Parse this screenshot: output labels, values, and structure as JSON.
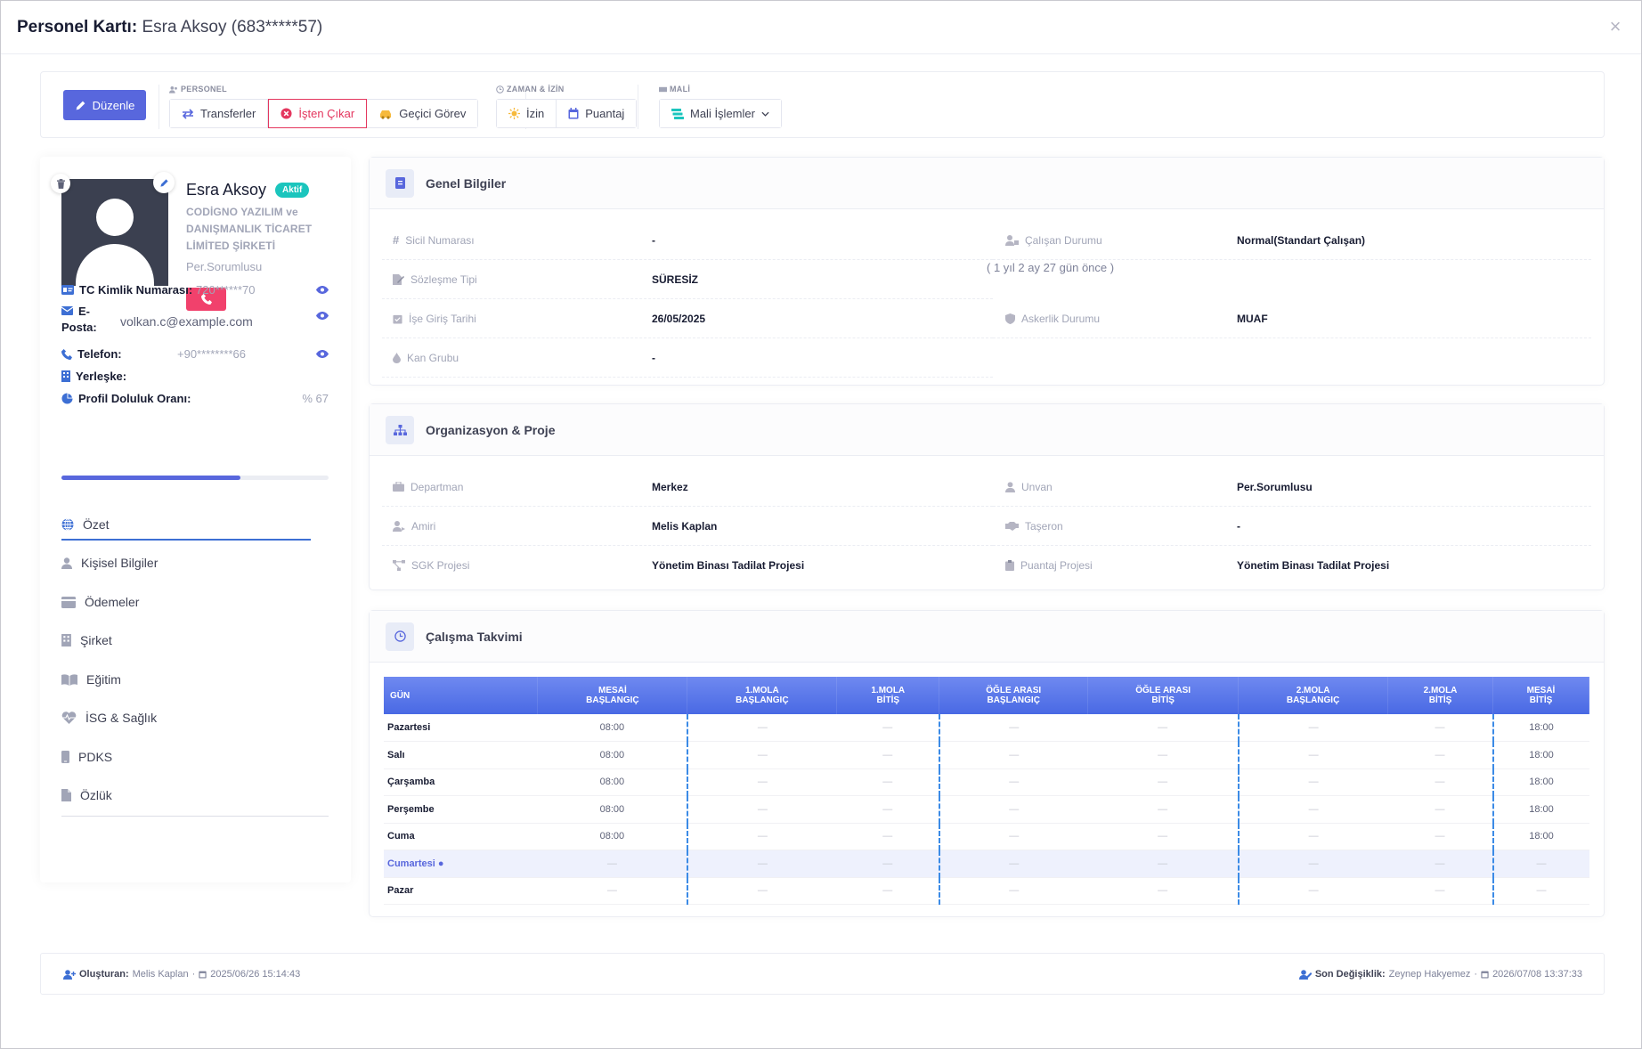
{
  "modal": {
    "title_prefix": "Personel Kartı:",
    "title_name": "Esra Aksoy (683*****57)"
  },
  "toolbar": {
    "edit_label": "Düzenle",
    "group_personel": "PERSONEL",
    "transfer_label": "Transferler",
    "dismiss_label": "İşten Çıkar",
    "temp_label": "Geçici Görev",
    "group_time": "ZAMAN & İZİN",
    "leave_label": "İzin",
    "attendance_label": "Puantaj",
    "group_finance": "MALİ",
    "finance_label": "Mali İşlemler"
  },
  "profile": {
    "name": "Esra Aksoy",
    "status": "Aktif",
    "company": "CODİGNO YAZILIM ve DANIŞMANLIK TİCARET LİMİTED ŞİRKETİ",
    "role": "Per.Sorumlusu",
    "tc_label": "TC Kimlik Numarası:",
    "tc_value": "720******70",
    "email_label_1": "E-",
    "email_label_2": "Posta:",
    "email_value": "volkan.c@example.com",
    "phone_label": "Telefon:",
    "phone_value": "+90********66",
    "campus_label": "Yerleşke:",
    "completion_label": "Profil Doluluk Oranı:",
    "completion_value": "% 67",
    "completion_fraction": 0.67
  },
  "nav": [
    {
      "label": "Özet"
    },
    {
      "label": "Kişisel Bilgiler"
    },
    {
      "label": "Ödemeler"
    },
    {
      "label": "Şirket"
    },
    {
      "label": "Eğitim"
    },
    {
      "label": "İSG & Sağlık"
    },
    {
      "label": "PDKS"
    },
    {
      "label": "Özlük"
    }
  ],
  "general": {
    "title": "Genel Bilgiler",
    "sicil_label": "Sicil Numarası",
    "sicil_value": "-",
    "contract_label": "Sözleşme Tipi",
    "contract_value": "SÜRESİZ",
    "start_label": "İşe Giriş Tarihi",
    "start_value": "26/05/2025",
    "blood_label": "Kan Grubu",
    "blood_value": "-",
    "status_label": "Çalışan Durumu",
    "status_value": "Normal(Standart Çalışan)",
    "tenure": "( 1 yıl 2 ay 27 gün önce )",
    "military_label": "Askerlik Durumu",
    "military_value": "MUAF"
  },
  "org": {
    "title": "Organizasyon & Proje",
    "dept_label": "Departman",
    "dept_value": "Merkez",
    "manager_label": "Amiri",
    "manager_value": "Melis Kaplan",
    "sgk_label": "SGK Projesi",
    "sgk_value": "Yönetim Binası Tadilat Projesi",
    "title_label": "Unvan",
    "title_value": "Per.Sorumlusu",
    "sub_label": "Taşeron",
    "sub_value": "-",
    "puantaj_label": "Puantaj Projesi",
    "puantaj_value": "Yönetim Binası Tadilat Projesi"
  },
  "schedule": {
    "title": "Çalışma Takvimi",
    "headers": [
      [
        "GÜN"
      ],
      [
        "MESAİ",
        "BAŞLANGIÇ"
      ],
      [
        "1.MOLA",
        "BAŞLANGIÇ"
      ],
      [
        "1.MOLA",
        "BİTİŞ"
      ],
      [
        "ÖĞLE ARASI",
        "BAŞLANGIÇ"
      ],
      [
        "ÖĞLE ARASI",
        "BİTİŞ"
      ],
      [
        "2.MOLA",
        "BAŞLANGIÇ"
      ],
      [
        "2.MOLA",
        "BİTİŞ"
      ],
      [
        "MESAİ",
        "BİTİŞ"
      ]
    ],
    "rows": [
      [
        "Pazartesi",
        "08:00",
        "—",
        "—",
        "—",
        "—",
        "—",
        "—",
        "18:00"
      ],
      [
        "Salı",
        "08:00",
        "—",
        "—",
        "—",
        "—",
        "—",
        "—",
        "18:00"
      ],
      [
        "Çarşamba",
        "08:00",
        "—",
        "—",
        "—",
        "—",
        "—",
        "—",
        "18:00"
      ],
      [
        "Perşembe",
        "08:00",
        "—",
        "—",
        "—",
        "—",
        "—",
        "—",
        "18:00"
      ],
      [
        "Cuma",
        "08:00",
        "—",
        "—",
        "—",
        "—",
        "—",
        "—",
        "18:00"
      ],
      [
        "Cumartesi ●",
        "—",
        "—",
        "—",
        "—",
        "—",
        "—",
        "—",
        "—"
      ],
      [
        "Pazar",
        "—",
        "—",
        "—",
        "—",
        "—",
        "—",
        "—",
        "—"
      ]
    ],
    "highlight_row": 5
  },
  "footer": {
    "created_label": "Oluşturan:",
    "created_by": "Melis Kaplan",
    "created_sep": "·",
    "created_at": "2025/06/26 15:14:43",
    "modified_label": "Son Değişiklik:",
    "modified_by": "Zeynep Hakyemez",
    "modified_sep": "·",
    "modified_at": "2026/07/08 13:37:33"
  },
  "colors": {
    "primary": "#5867dd",
    "danger": "#e4365e",
    "success": "#1bc5bd",
    "pink": "#f1416c"
  }
}
